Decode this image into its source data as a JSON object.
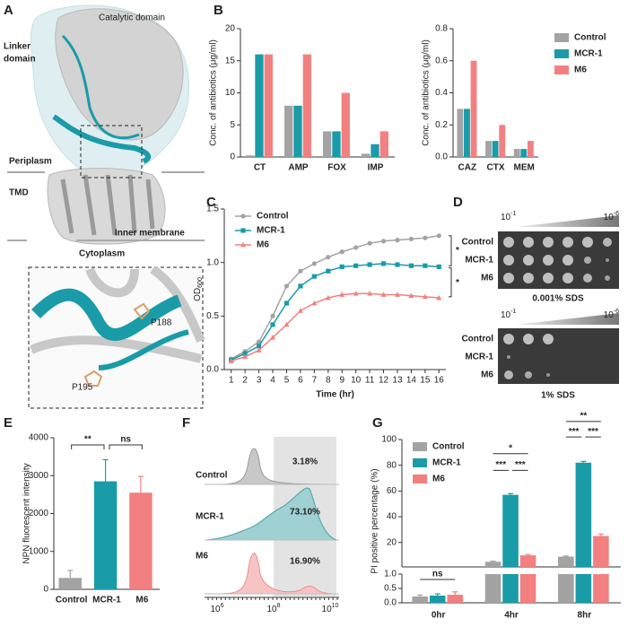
{
  "panel_labels": [
    "A",
    "B",
    "C",
    "D",
    "E",
    "F",
    "G"
  ],
  "structure": {
    "catalytic": "Catalytic domain",
    "linker": [
      "Linker",
      "domain"
    ],
    "periplasm": "Periplasm",
    "tmd": "TMD",
    "inner_membrane": "Inner membrane",
    "cytoplasm": "Cytoplasm",
    "residues": [
      "P188",
      "P195"
    ]
  },
  "chart_data": [
    {
      "type": "bar",
      "ylabel": "Conc. of antibiotics (μg/ml)",
      "categories": [
        "CT",
        "AMP",
        "FOX",
        "IMP"
      ],
      "series": [
        {
          "color": "#a3a3a3",
          "values": [
            0.25,
            8,
            4,
            0.5
          ]
        },
        {
          "color": "#1a9ba8",
          "values": [
            16,
            8,
            4,
            2
          ]
        },
        {
          "color": "#f28080",
          "values": [
            16,
            16,
            10,
            4
          ]
        }
      ],
      "ylim": [
        0,
        20
      ],
      "yticks": [
        0,
        5,
        10,
        15,
        20
      ]
    },
    {
      "type": "bar",
      "ylabel": "Conc. of antibiotics (μg/ml)",
      "categories": [
        "CAZ",
        "CTX",
        "MEM"
      ],
      "series": [
        {
          "name": "Control",
          "color": "#a3a3a3",
          "values": [
            0.3,
            0.1,
            0.05
          ]
        },
        {
          "name": "MCR-1",
          "color": "#1a9ba8",
          "values": [
            0.3,
            0.1,
            0.05
          ]
        },
        {
          "name": "M6",
          "color": "#f28080",
          "values": [
            0.6,
            0.2,
            0.1
          ]
        }
      ],
      "ylim": [
        0,
        0.8
      ],
      "yticks": [
        {
          "value": 0,
          "label": "0.0"
        },
        0.2,
        0.4,
        0.6,
        0.8
      ],
      "legend": "right"
    },
    {
      "type": "line",
      "xlabel": "Time (hr)",
      "ylabel": "OD",
      "ylabel_sub": "600",
      "x": [
        1,
        2,
        3,
        4,
        5,
        6,
        7,
        8,
        9,
        10,
        11,
        12,
        13,
        14,
        15,
        16
      ],
      "series": [
        {
          "name": "Control",
          "color": "#a3a3a3",
          "marker": "circle",
          "values": [
            0.1,
            0.17,
            0.26,
            0.5,
            0.78,
            0.92,
            0.99,
            1.05,
            1.1,
            1.14,
            1.18,
            1.2,
            1.21,
            1.22,
            1.23,
            1.25
          ]
        },
        {
          "name": "MCR-1",
          "color": "#1a9ba8",
          "marker": "square",
          "values": [
            0.09,
            0.15,
            0.22,
            0.42,
            0.62,
            0.78,
            0.87,
            0.92,
            0.96,
            0.97,
            0.98,
            0.99,
            0.98,
            0.97,
            0.97,
            0.96
          ]
        },
        {
          "name": "M6",
          "color": "#f28080",
          "marker": "triangle",
          "values": [
            0.08,
            0.12,
            0.18,
            0.3,
            0.42,
            0.55,
            0.62,
            0.67,
            0.7,
            0.71,
            0.71,
            0.7,
            0.7,
            0.69,
            0.68,
            0.67
          ]
        }
      ],
      "xlim": [
        0.5,
        16.5
      ],
      "xticks": [
        1,
        2,
        3,
        4,
        5,
        6,
        7,
        8,
        9,
        10,
        11,
        12,
        13,
        14,
        15,
        16
      ],
      "ylim": [
        0,
        1.5
      ],
      "yticks": [
        {
          "value": 0,
          "label": "0.0"
        },
        0.5,
        {
          "value": 1,
          "label": "1.0"
        },
        1.5
      ],
      "legend": "upper left",
      "annotations": [
        "*",
        "*"
      ]
    },
    {
      "type": "bar",
      "ylabel": "NPN fluorescent intensity",
      "categories": [
        "Control",
        "MCR-1",
        "M6"
      ],
      "values": [
        300,
        2850,
        2550
      ],
      "errors": [
        200,
        570,
        430
      ],
      "colors": [
        "#a3a3a3",
        "#1a9ba8",
        "#f28080"
      ],
      "ylim": [
        0,
        4000
      ],
      "yticks": [
        0,
        1000,
        2000,
        3000,
        4000
      ],
      "annotations": [
        "**",
        "ns"
      ]
    },
    {
      "type": "broken_bar",
      "ylabel": "PI positive percentage (%)",
      "categories": [
        "0hr",
        "4hr",
        "8hr"
      ],
      "series": [
        {
          "name": "Control",
          "color": "#a3a3a3",
          "values": [
            0.22,
            5,
            9
          ],
          "errors": [
            0.05,
            0.5,
            0.5
          ]
        },
        {
          "name": "MCR-1",
          "color": "#1a9ba8",
          "values": [
            0.25,
            57,
            82
          ],
          "errors": [
            0.06,
            1,
            1
          ]
        },
        {
          "name": "M6",
          "color": "#f28080",
          "values": [
            0.28,
            10,
            25
          ],
          "errors": [
            0.1,
            0.7,
            1.5
          ]
        }
      ],
      "segments": [
        {
          "ylim": [
            0,
            1
          ],
          "yticks": [
            {
              "value": 0,
              "label": "0.0"
            },
            0.5,
            {
              "value": 1,
              "label": "1.0"
            }
          ]
        },
        {
          "ylim": [
            1,
            100
          ],
          "yticks": [
            20,
            40,
            60,
            80,
            100
          ]
        }
      ],
      "legend": "upper left",
      "annotations": [
        "ns",
        "***",
        "***",
        "*",
        "***",
        "***",
        "**"
      ]
    }
  ],
  "spot_assay": {
    "dilution_start": {
      "base": "10",
      "exp": "-1"
    },
    "dilution_end": {
      "base": "10",
      "exp": "-6"
    },
    "rows": [
      "Control",
      "MCR-1",
      "M6"
    ],
    "conditions": [
      "0.001% SDS",
      "1% SDS"
    ]
  },
  "flow": {
    "samples": [
      "Control",
      "MCR-1",
      "M6"
    ],
    "percentages": [
      "3.18%",
      "73.10%",
      "16.90%"
    ],
    "xtick_labels": [
      {
        "base": "10",
        "exp": "6"
      },
      {
        "base": "10",
        "exp": "8"
      },
      {
        "base": "10",
        "exp": "10"
      }
    ]
  }
}
